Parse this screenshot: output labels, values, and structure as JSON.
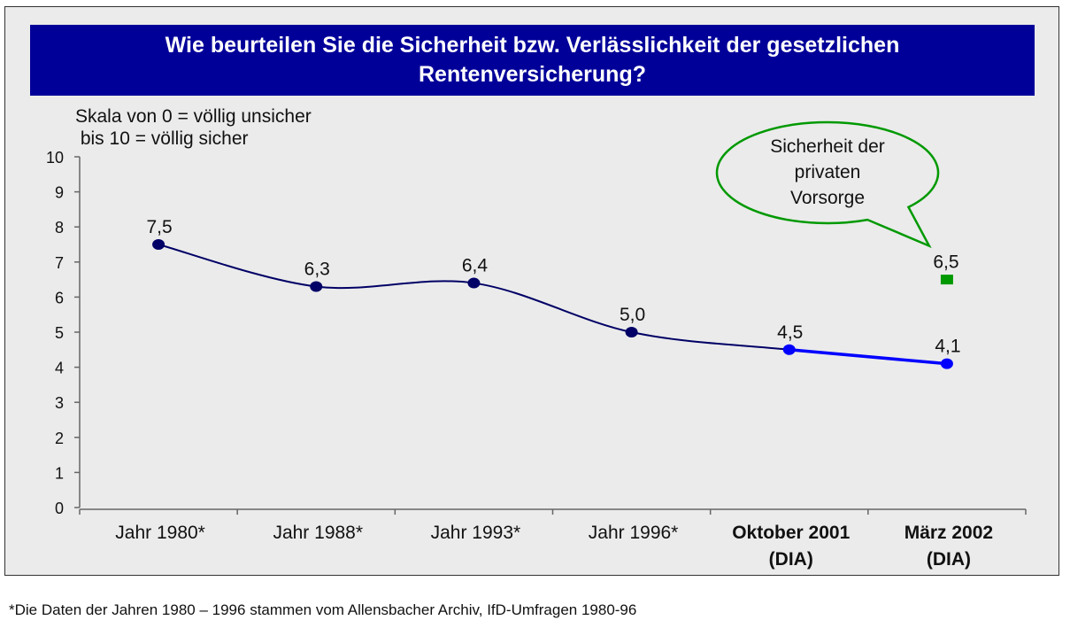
{
  "title_line1": "Wie beurteilen Sie die Sicherheit bzw. Verlässlichkeit der gesetzlichen",
  "title_line2": "Rentenversicherung?",
  "scale_note_line1": "Skala von 0 = völlig unsicher",
  "scale_note_line2": " bis 10 = völlig sicher",
  "callout": [
    "Sicherheit der",
    "privaten",
    "Vorsorge"
  ],
  "footnote": "*Die Daten der Jahren 1980 – 1996 stammen vom Allensbacher Archiv, IfD-Umfragen 1980-96",
  "colors": {
    "title_bg": "#000099",
    "series_dark": "#000066",
    "series_bright": "#0000ff",
    "private_marker": "#009900",
    "callout_border": "#009900"
  },
  "chart_data": {
    "type": "line",
    "categories": [
      [
        "Jahr 1980*"
      ],
      [
        "Jahr 1988*"
      ],
      [
        "Jahr 1993*"
      ],
      [
        "Jahr 1996*"
      ],
      [
        "Oktober 2001",
        "(DIA)"
      ],
      [
        "März 2002",
        "(DIA)"
      ]
    ],
    "bold_categories": [
      false,
      false,
      false,
      false,
      true,
      true
    ],
    "series": [
      {
        "values": [
          7.5,
          6.3,
          6.4,
          5.0,
          4.5,
          4.1
        ],
        "labels": [
          "7,5",
          "6,3",
          "6,4",
          "5,0",
          "4,5",
          "4,1"
        ]
      }
    ],
    "extra_point": {
      "category_index": 5,
      "value": 6.5,
      "label": "6,5"
    },
    "yticks": [
      "0",
      "1",
      "2",
      "3",
      "4",
      "5",
      "6",
      "7",
      "8",
      "9",
      "10"
    ],
    "ylim": [
      0,
      10
    ],
    "grid": false,
    "legend": "none"
  }
}
